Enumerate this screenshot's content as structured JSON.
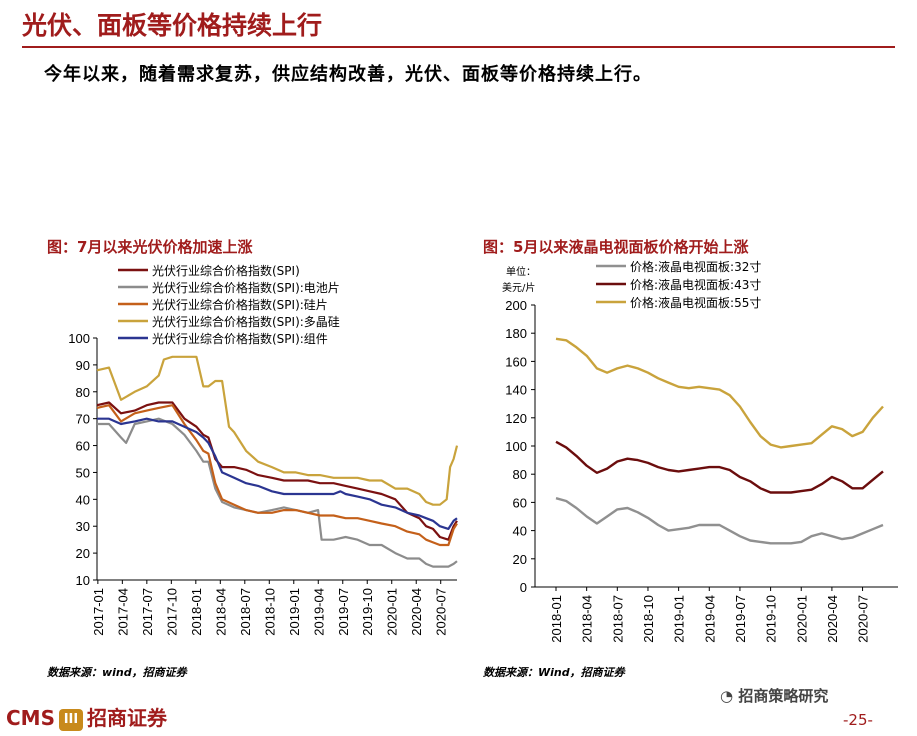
{
  "header": {
    "title": "光伏、面板等价格持续上行",
    "subtitle": "今年以来，随着需求复苏，供应结构改善，光伏、面板等价格持续上行。"
  },
  "left_panel": {
    "title": "图：7月以来光伏价格加速上涨",
    "source": "数据来源：wind，招商证券"
  },
  "right_panel": {
    "title": "图：5月以来液晶电视面板价格开始上涨",
    "source": "数据来源：Wind，招商证券",
    "unit_line1": "单位：",
    "unit_line2": "美元/片"
  },
  "footer": {
    "logo_text": "CMS",
    "badge_text": "III",
    "company": "招商证券",
    "wechat": "招商策略研究",
    "page": "-25-"
  },
  "chart_data": [
    {
      "type": "line",
      "x_labels": [
        "2017-01",
        "2017-04",
        "2017-07",
        "2017-10",
        "2018-01",
        "2018-04",
        "2018-07",
        "2018-10",
        "2019-01",
        "2019-04",
        "2019-07",
        "2019-10",
        "2020-01",
        "2020-04",
        "2020-07"
      ],
      "x_range": [
        0,
        21
      ],
      "ylim": [
        10,
        100
      ],
      "yticks": [
        10,
        20,
        30,
        40,
        50,
        60,
        70,
        80,
        90,
        100
      ],
      "legend_position": "top-left",
      "series": [
        {
          "name": "光伏行业综合价格指数(SPI)",
          "color": "#7b1111",
          "points": [
            [
              0,
              75
            ],
            [
              0.7,
              76
            ],
            [
              1.4,
              72
            ],
            [
              2.2,
              73
            ],
            [
              2.9,
              75
            ],
            [
              3.6,
              76
            ],
            [
              4.4,
              76
            ],
            [
              5.1,
              70
            ],
            [
              5.8,
              67
            ],
            [
              6.2,
              64
            ],
            [
              6.5,
              63
            ],
            [
              6.9,
              55
            ],
            [
              7.3,
              52
            ],
            [
              8.0,
              52
            ],
            [
              8.7,
              51
            ],
            [
              9.4,
              49
            ],
            [
              10.2,
              48
            ],
            [
              10.9,
              47
            ],
            [
              11.6,
              47
            ],
            [
              12.3,
              47
            ],
            [
              13.0,
              46
            ],
            [
              13.8,
              46
            ],
            [
              14.5,
              45
            ],
            [
              15.2,
              44
            ],
            [
              15.9,
              43
            ],
            [
              16.6,
              42
            ],
            [
              17.4,
              40
            ],
            [
              18.1,
              35
            ],
            [
              18.8,
              33
            ],
            [
              19.2,
              30
            ],
            [
              19.6,
              29
            ],
            [
              20.0,
              26
            ],
            [
              20.5,
              25
            ],
            [
              20.8,
              30
            ],
            [
              21.0,
              32
            ]
          ]
        },
        {
          "name": "光伏行业综合价格指数(SPI):电池片",
          "color": "#8c8c8c",
          "points": [
            [
              0,
              68
            ],
            [
              0.7,
              68
            ],
            [
              1.4,
              63
            ],
            [
              1.7,
              61
            ],
            [
              2.2,
              68
            ],
            [
              2.9,
              69
            ],
            [
              3.6,
              70
            ],
            [
              4.4,
              68
            ],
            [
              5.1,
              64
            ],
            [
              5.8,
              58
            ],
            [
              6.2,
              54
            ],
            [
              6.5,
              54
            ],
            [
              6.9,
              44
            ],
            [
              7.3,
              39
            ],
            [
              8.0,
              37
            ],
            [
              8.7,
              36
            ],
            [
              9.4,
              35
            ],
            [
              10.2,
              36
            ],
            [
              10.9,
              37
            ],
            [
              11.6,
              36
            ],
            [
              12.3,
              35
            ],
            [
              12.9,
              36
            ],
            [
              13.1,
              25
            ],
            [
              13.8,
              25
            ],
            [
              14.5,
              26
            ],
            [
              15.2,
              25
            ],
            [
              15.9,
              23
            ],
            [
              16.6,
              23
            ],
            [
              17.4,
              20
            ],
            [
              18.1,
              18
            ],
            [
              18.8,
              18
            ],
            [
              19.2,
              16
            ],
            [
              19.6,
              15
            ],
            [
              20.0,
              15
            ],
            [
              20.5,
              15
            ],
            [
              20.8,
              16
            ],
            [
              21.0,
              17
            ]
          ]
        },
        {
          "name": "光伏行业综合价格指数(SPI):硅片",
          "color": "#c4601a",
          "points": [
            [
              0,
              74
            ],
            [
              0.7,
              75
            ],
            [
              1.4,
              69
            ],
            [
              2.2,
              72
            ],
            [
              2.9,
              73
            ],
            [
              3.6,
              74
            ],
            [
              4.4,
              75
            ],
            [
              5.1,
              68
            ],
            [
              5.8,
              62
            ],
            [
              6.2,
              58
            ],
            [
              6.5,
              57
            ],
            [
              6.9,
              46
            ],
            [
              7.3,
              40
            ],
            [
              8.0,
              38
            ],
            [
              8.7,
              36
            ],
            [
              9.4,
              35
            ],
            [
              10.2,
              35
            ],
            [
              10.9,
              36
            ],
            [
              11.6,
              36
            ],
            [
              12.3,
              35
            ],
            [
              13.0,
              34
            ],
            [
              13.8,
              34
            ],
            [
              14.5,
              33
            ],
            [
              15.2,
              33
            ],
            [
              15.9,
              32
            ],
            [
              16.6,
              31
            ],
            [
              17.4,
              30
            ],
            [
              18.1,
              28
            ],
            [
              18.8,
              27
            ],
            [
              19.2,
              25
            ],
            [
              19.6,
              24
            ],
            [
              20.0,
              23
            ],
            [
              20.5,
              23
            ],
            [
              20.8,
              29
            ],
            [
              21.0,
              31
            ]
          ]
        },
        {
          "name": "光伏行业综合价格指数(SPI):多晶硅",
          "color": "#c9a33c",
          "points": [
            [
              0,
              88
            ],
            [
              0.7,
              89
            ],
            [
              1.4,
              77
            ],
            [
              2.2,
              80
            ],
            [
              2.9,
              82
            ],
            [
              3.6,
              86
            ],
            [
              3.9,
              92
            ],
            [
              4.4,
              93
            ],
            [
              5.1,
              93
            ],
            [
              5.8,
              93
            ],
            [
              6.2,
              82
            ],
            [
              6.5,
              82
            ],
            [
              6.9,
              84
            ],
            [
              7.3,
              84
            ],
            [
              7.7,
              67
            ],
            [
              8.0,
              65
            ],
            [
              8.7,
              58
            ],
            [
              9.4,
              54
            ],
            [
              10.2,
              52
            ],
            [
              10.9,
              50
            ],
            [
              11.6,
              50
            ],
            [
              12.3,
              49
            ],
            [
              13.0,
              49
            ],
            [
              13.8,
              48
            ],
            [
              14.5,
              48
            ],
            [
              15.2,
              48
            ],
            [
              15.9,
              47
            ],
            [
              16.6,
              47
            ],
            [
              17.4,
              44
            ],
            [
              18.1,
              44
            ],
            [
              18.8,
              42
            ],
            [
              19.2,
              39
            ],
            [
              19.6,
              38
            ],
            [
              20.0,
              38
            ],
            [
              20.4,
              40
            ],
            [
              20.6,
              52
            ],
            [
              20.8,
              55
            ],
            [
              21.0,
              60
            ]
          ]
        },
        {
          "name": "光伏行业综合价格指数(SPI):组件",
          "color": "#2b3591",
          "points": [
            [
              0,
              70
            ],
            [
              0.7,
              70
            ],
            [
              1.4,
              68
            ],
            [
              2.2,
              69
            ],
            [
              2.9,
              70
            ],
            [
              3.6,
              69
            ],
            [
              4.4,
              69
            ],
            [
              5.1,
              67
            ],
            [
              5.8,
              65
            ],
            [
              6.2,
              63
            ],
            [
              6.5,
              61
            ],
            [
              6.9,
              56
            ],
            [
              7.3,
              50
            ],
            [
              8.0,
              48
            ],
            [
              8.7,
              46
            ],
            [
              9.4,
              45
            ],
            [
              10.2,
              43
            ],
            [
              10.9,
              42
            ],
            [
              11.6,
              42
            ],
            [
              12.3,
              42
            ],
            [
              13.0,
              42
            ],
            [
              13.8,
              42
            ],
            [
              14.2,
              43
            ],
            [
              14.5,
              42
            ],
            [
              15.2,
              41
            ],
            [
              15.9,
              40
            ],
            [
              16.6,
              38
            ],
            [
              17.4,
              37
            ],
            [
              18.1,
              35
            ],
            [
              18.8,
              34
            ],
            [
              19.2,
              33
            ],
            [
              19.6,
              32
            ],
            [
              20.0,
              30
            ],
            [
              20.5,
              29
            ],
            [
              20.8,
              32
            ],
            [
              21.0,
              33
            ]
          ]
        }
      ]
    },
    {
      "type": "line",
      "x_labels": [
        "2018-01",
        "2018-04",
        "2018-07",
        "2018-10",
        "2019-01",
        "2019-04",
        "2019-07",
        "2019-10",
        "2020-01",
        "2020-04",
        "2020-07"
      ],
      "x_range": [
        0,
        33
      ],
      "ylim": [
        0,
        200
      ],
      "yticks": [
        0,
        20,
        40,
        60,
        80,
        100,
        120,
        140,
        160,
        180,
        200
      ],
      "ylabel": "美元/片",
      "legend_position": "top-center",
      "series": [
        {
          "name": "价格:液晶电视面板:32寸",
          "color": "#909090",
          "values": [
            63,
            61,
            56,
            50,
            45,
            50,
            55,
            56,
            53,
            49,
            44,
            40,
            41,
            42,
            44,
            44,
            44,
            40,
            36,
            33,
            32,
            31,
            31,
            31,
            32,
            36,
            38,
            36,
            34,
            35,
            38,
            41,
            44
          ]
        },
        {
          "name": "价格:液晶电视面板:43寸",
          "color": "#6b0d0d",
          "values": [
            103,
            99,
            93,
            86,
            81,
            84,
            89,
            91,
            90,
            88,
            85,
            83,
            82,
            83,
            84,
            85,
            85,
            83,
            78,
            75,
            70,
            67,
            67,
            67,
            68,
            69,
            73,
            78,
            75,
            70,
            70,
            76,
            82
          ]
        },
        {
          "name": "价格:液晶电视面板:55寸",
          "color": "#c9a33c",
          "values": [
            176,
            175,
            170,
            164,
            155,
            152,
            155,
            157,
            155,
            152,
            148,
            145,
            142,
            141,
            142,
            141,
            140,
            136,
            128,
            117,
            107,
            101,
            99,
            100,
            101,
            102,
            108,
            114,
            112,
            107,
            110,
            120,
            128
          ]
        }
      ]
    }
  ]
}
